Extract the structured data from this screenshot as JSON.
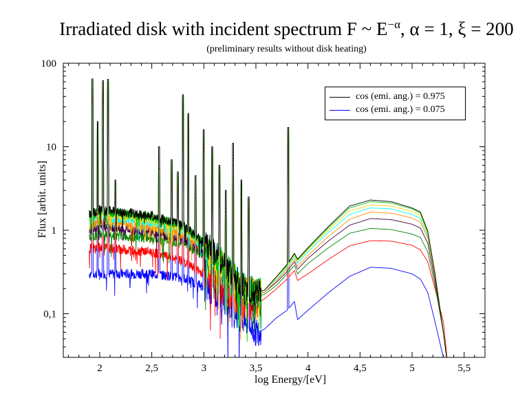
{
  "chart_data": {
    "type": "line",
    "title": "Irradiated disk with incident spectrum F ~ E",
    "title_exponent": "−α",
    "title_params": ", α = 1, ξ = 200",
    "subtitle": "(preliminary results without disk heating)",
    "xlabel": "log Energy/[eV]",
    "ylabel": "Flux [arbit. units]",
    "xlim": [
      1.65,
      5.7
    ],
    "ylim": [
      0.03,
      100
    ],
    "yscale": "log",
    "grid": false,
    "legend_placement": "top-right",
    "x_ticks": [
      {
        "value": 2,
        "label": "2"
      },
      {
        "value": 2.5,
        "label": "2,5"
      },
      {
        "value": 3,
        "label": "3"
      },
      {
        "value": 3.5,
        "label": "3,5"
      },
      {
        "value": 4,
        "label": "4"
      },
      {
        "value": 4.5,
        "label": "4,5"
      },
      {
        "value": 5,
        "label": "5"
      },
      {
        "value": 5.5,
        "label": "5,5"
      }
    ],
    "y_ticks": [
      {
        "value": 0.1,
        "label": "0,1"
      },
      {
        "value": 1,
        "label": "1"
      },
      {
        "value": 10,
        "label": "10"
      },
      {
        "value": 100,
        "label": "100"
      }
    ],
    "legend": [
      {
        "label": "cos (emi. ang.) = 0.975",
        "color": "#000000"
      },
      {
        "label": "cos (emi. ang.) = 0.075",
        "color": "#0000ff"
      }
    ],
    "series": [
      {
        "color": "#0000ff",
        "x": [
          1.9,
          2.0,
          2.5,
          2.8,
          3.0,
          3.2,
          3.35,
          3.5,
          3.58,
          3.7,
          3.8,
          3.87,
          3.9,
          4.0,
          4.2,
          4.4,
          4.6,
          4.8,
          5.0,
          5.08,
          5.15,
          5.22,
          5.3,
          5.35
        ],
        "y": [
          0.3,
          0.3,
          0.3,
          0.27,
          0.21,
          0.14,
          0.09,
          0.06,
          0.065,
          0.09,
          0.11,
          0.14,
          0.085,
          0.11,
          0.18,
          0.28,
          0.36,
          0.35,
          0.3,
          0.26,
          0.18,
          0.08,
          0.03,
          0.02
        ]
      },
      {
        "color": "#ff0000",
        "x": [
          1.9,
          2.0,
          2.5,
          2.8,
          3.0,
          3.2,
          3.35,
          3.5,
          3.58,
          3.7,
          3.8,
          3.87,
          3.9,
          4.0,
          4.2,
          4.4,
          4.6,
          4.8,
          5.0,
          5.08,
          5.15,
          5.22,
          5.3,
          5.35
        ],
        "y": [
          0.6,
          0.62,
          0.55,
          0.42,
          0.3,
          0.18,
          0.12,
          0.13,
          0.15,
          0.2,
          0.26,
          0.33,
          0.25,
          0.3,
          0.45,
          0.65,
          0.75,
          0.74,
          0.66,
          0.58,
          0.42,
          0.2,
          0.08,
          0.02
        ]
      },
      {
        "color": "#008000",
        "x": [
          1.9,
          2.0,
          2.5,
          2.8,
          3.0,
          3.2,
          3.35,
          3.5,
          3.58,
          3.7,
          3.8,
          3.87,
          3.9,
          4.0,
          4.2,
          4.4,
          4.6,
          4.8,
          5.0,
          5.08,
          5.15,
          5.22,
          5.3,
          5.35
        ],
        "y": [
          0.8,
          0.9,
          0.8,
          0.7,
          0.5,
          0.3,
          0.18,
          0.16,
          0.17,
          0.22,
          0.3,
          0.38,
          0.3,
          0.4,
          0.62,
          0.92,
          1.05,
          1.02,
          0.9,
          0.82,
          0.55,
          0.22,
          0.06,
          0.02
        ]
      },
      {
        "color": "#400040",
        "x": [
          1.9,
          2.0,
          2.5,
          2.8,
          3.0,
          3.2,
          3.35,
          3.5,
          3.58,
          3.7,
          3.8,
          3.87,
          3.9,
          4.0,
          4.2,
          4.4,
          4.6,
          4.8,
          5.0,
          5.08,
          5.15,
          5.22,
          5.3,
          5.35
        ],
        "y": [
          1.0,
          1.1,
          0.95,
          0.8,
          0.55,
          0.32,
          0.2,
          0.17,
          0.18,
          0.24,
          0.32,
          0.42,
          0.34,
          0.46,
          0.75,
          1.15,
          1.38,
          1.34,
          1.18,
          1.06,
          0.7,
          0.25,
          0.06,
          0.02
        ]
      },
      {
        "color": "#ff8c00",
        "x": [
          1.9,
          2.0,
          2.5,
          2.8,
          3.0,
          3.2,
          3.35,
          3.5,
          3.58,
          3.7,
          3.8,
          3.87,
          3.9,
          4.0,
          4.2,
          4.4,
          4.6,
          4.8,
          5.0,
          5.08,
          5.15,
          5.22,
          5.3,
          5.35
        ],
        "y": [
          1.1,
          1.3,
          1.1,
          0.9,
          0.6,
          0.34,
          0.21,
          0.17,
          0.18,
          0.25,
          0.34,
          0.45,
          0.37,
          0.5,
          0.85,
          1.35,
          1.65,
          1.6,
          1.4,
          1.25,
          0.8,
          0.28,
          0.06,
          0.02
        ]
      },
      {
        "color": "#00ffff",
        "x": [
          1.9,
          2.0,
          2.5,
          2.8,
          3.0,
          3.2,
          3.35,
          3.5,
          3.58,
          3.7,
          3.8,
          3.87,
          3.9,
          4.0,
          4.2,
          4.4,
          4.6,
          4.8,
          5.0,
          5.08,
          5.15,
          5.22,
          5.3,
          5.35
        ],
        "y": [
          1.3,
          1.5,
          1.25,
          1.0,
          0.65,
          0.36,
          0.22,
          0.18,
          0.19,
          0.26,
          0.36,
          0.48,
          0.4,
          0.55,
          0.95,
          1.55,
          1.85,
          1.8,
          1.55,
          1.38,
          0.85,
          0.3,
          0.06,
          0.02
        ]
      },
      {
        "color": "#ffd700",
        "x": [
          1.9,
          2.0,
          2.5,
          2.8,
          3.0,
          3.2,
          3.35,
          3.5,
          3.58,
          3.7,
          3.8,
          3.87,
          3.9,
          4.0,
          4.2,
          4.4,
          4.6,
          4.8,
          5.0,
          5.08,
          5.15,
          5.22,
          5.3,
          5.35
        ],
        "y": [
          1.4,
          1.6,
          1.35,
          1.05,
          0.68,
          0.37,
          0.22,
          0.18,
          0.19,
          0.27,
          0.37,
          0.5,
          0.42,
          0.58,
          1.02,
          1.7,
          2.0,
          1.95,
          1.68,
          1.5,
          0.9,
          0.3,
          0.06,
          0.02
        ]
      },
      {
        "color": "#00c000",
        "x": [
          1.9,
          2.0,
          2.5,
          2.8,
          3.0,
          3.2,
          3.35,
          3.5,
          3.58,
          3.7,
          3.8,
          3.87,
          3.9,
          4.0,
          4.2,
          4.4,
          4.6,
          4.8,
          5.0,
          5.08,
          5.15,
          5.22,
          5.3,
          5.35
        ],
        "y": [
          1.5,
          1.7,
          1.45,
          1.1,
          0.7,
          0.38,
          0.23,
          0.18,
          0.19,
          0.28,
          0.38,
          0.52,
          0.44,
          0.6,
          1.08,
          1.85,
          2.2,
          2.12,
          1.8,
          1.6,
          0.95,
          0.3,
          0.06,
          0.02
        ]
      },
      {
        "color": "#000000",
        "x": [
          1.9,
          2.0,
          2.5,
          2.8,
          3.0,
          3.2,
          3.35,
          3.5,
          3.58,
          3.7,
          3.8,
          3.87,
          3.9,
          4.0,
          4.2,
          4.4,
          4.6,
          4.8,
          5.0,
          5.08,
          5.15,
          5.22,
          5.3,
          5.35
        ],
        "y": [
          1.55,
          1.75,
          1.5,
          1.15,
          0.72,
          0.39,
          0.23,
          0.18,
          0.19,
          0.28,
          0.39,
          0.53,
          0.45,
          0.62,
          1.12,
          1.95,
          2.3,
          2.2,
          1.85,
          1.65,
          0.98,
          0.3,
          0.06,
          0.02
        ]
      }
    ],
    "emission_lines": [
      {
        "x": 1.93,
        "peak": 65
      },
      {
        "x": 1.98,
        "peak": 20
      },
      {
        "x": 2.03,
        "peak": 62
      },
      {
        "x": 2.08,
        "peak": 64
      },
      {
        "x": 2.15,
        "peak": 4
      },
      {
        "x": 2.57,
        "peak": 10
      },
      {
        "x": 2.69,
        "peak": 7
      },
      {
        "x": 2.75,
        "peak": 5
      },
      {
        "x": 2.8,
        "peak": 42
      },
      {
        "x": 2.85,
        "peak": 25
      },
      {
        "x": 2.92,
        "peak": 4.5
      },
      {
        "x": 3.0,
        "peak": 16
      },
      {
        "x": 3.08,
        "peak": 10
      },
      {
        "x": 3.15,
        "peak": 6
      },
      {
        "x": 3.21,
        "peak": 3
      },
      {
        "x": 3.28,
        "peak": 11
      },
      {
        "x": 3.36,
        "peak": 4
      },
      {
        "x": 3.43,
        "peak": 2.5
      },
      {
        "x": 3.81,
        "peak": 17
      }
    ]
  }
}
